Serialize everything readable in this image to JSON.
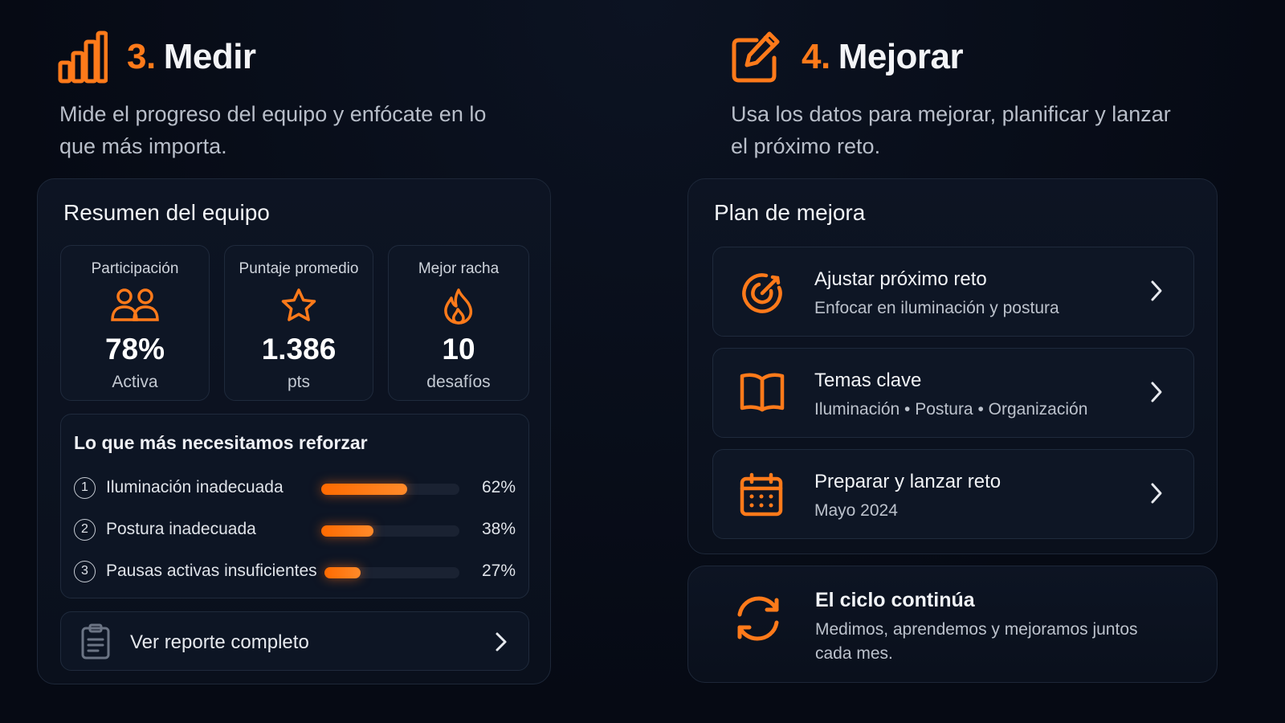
{
  "colors": {
    "accent": "#ff7a1a",
    "background": "#060a14",
    "panel": "#0d1423"
  },
  "medir": {
    "number": "3.",
    "title": "Medir",
    "icon": "bar-chart-icon",
    "subtitle": "Mide el progreso del equipo y enfócate en lo que más importa.",
    "summary": {
      "title": "Resumen del equipo",
      "stats": [
        {
          "label": "Participación",
          "icon": "users-icon",
          "value": "78%",
          "unit": "Activa"
        },
        {
          "label": "Puntaje promedio",
          "icon": "star-icon",
          "value": "1.386",
          "unit": "pts"
        },
        {
          "label": "Mejor racha",
          "icon": "flame-icon",
          "value": "10",
          "unit": "desafíos"
        }
      ],
      "reinforce": {
        "title": "Lo que más necesitamos reforzar",
        "items": [
          {
            "rank": "1",
            "name": "Iluminación inadecuada",
            "pct_label": "62%",
            "fraction": 0.62
          },
          {
            "rank": "2",
            "name": "Postura inadecuada",
            "pct_label": "38%",
            "fraction": 0.38
          },
          {
            "rank": "3",
            "name": "Pausas activas insuficientes",
            "pct_label": "27%",
            "fraction": 0.27
          }
        ]
      },
      "report_link": {
        "label": "Ver reporte completo",
        "icon": "clipboard-icon"
      }
    }
  },
  "mejorar": {
    "number": "4.",
    "title": "Mejorar",
    "icon": "edit-icon",
    "subtitle": "Usa los datos para mejorar, planificar y lanzar el próximo reto.",
    "plan": {
      "title": "Plan de mejora",
      "items": [
        {
          "title": "Ajustar próximo reto",
          "desc": "Enfocar en iluminación y postura",
          "icon": "target-icon"
        },
        {
          "title": "Temas clave",
          "desc": "Iluminación • Postura • Organización",
          "icon": "book-icon"
        },
        {
          "title": "Preparar y lanzar reto",
          "desc": "Mayo 2024",
          "icon": "calendar-icon"
        }
      ]
    },
    "cycle": {
      "title": "El ciclo continúa",
      "desc": "Medimos, aprendemos y mejoramos juntos cada mes.",
      "icon": "refresh-icon"
    }
  }
}
